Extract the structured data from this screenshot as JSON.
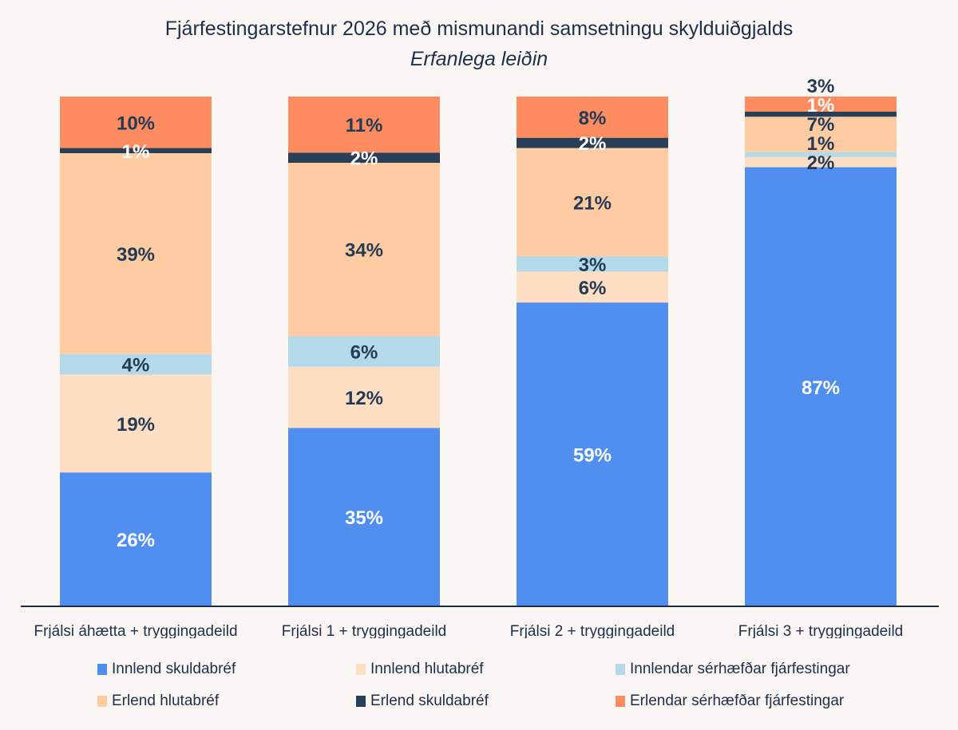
{
  "chart_data": {
    "type": "bar",
    "stacked": true,
    "title": "Fjárfestingarstefnur 2026 með mismunandi samsetningu skylduiðgjalds",
    "subtitle": "Erfanlega leiðin",
    "xlabel": "",
    "ylabel": "",
    "ylim": [
      0,
      100
    ],
    "grid": false,
    "legend_position": "bottom",
    "categories": [
      "Frjálsi áhætta + tryggingadeild",
      "Frjálsi 1 + tryggingadeild",
      "Frjálsi 2 + tryggingadeild",
      "Frjálsi 3 + tryggingadeild"
    ],
    "series": [
      {
        "name": "Innlend skuldabréf",
        "color": "#508ef0",
        "label_color": "#ffffff",
        "values": [
          26,
          35,
          59,
          87
        ],
        "labels": [
          "26%",
          "35%",
          "59%",
          "87%"
        ]
      },
      {
        "name": "Innlend hlutabréf",
        "color": "#ffdfc4",
        "label_color": "#243a55",
        "values": [
          19,
          12,
          6,
          2
        ],
        "labels": [
          "19%",
          "12%",
          "6%",
          "2%"
        ]
      },
      {
        "name": "Innlendar sérhæfðar fjárfestingar",
        "color": "#b4d9e8",
        "label_color": "#243a55",
        "values": [
          4,
          6,
          3,
          1
        ],
        "labels": [
          "4%",
          "6%",
          "3%",
          "1%"
        ]
      },
      {
        "name": "Erlend hlutabréf",
        "color": "#ffcba2",
        "label_color": "#243a55",
        "values": [
          39,
          34,
          21,
          7
        ],
        "labels": [
          "39%",
          "34%",
          "21%",
          "7%"
        ]
      },
      {
        "name": "Erlend skuldabréf",
        "color": "#293e57",
        "label_color": "#ffffff",
        "values": [
          1,
          2,
          2,
          1
        ],
        "labels": [
          "1%",
          "2%",
          "2%",
          "1%"
        ]
      },
      {
        "name": "Erlendar sérhæfðar fjárfestingar",
        "color": "#ff8c61",
        "label_color": "#243a55",
        "values": [
          10,
          11,
          8,
          3
        ],
        "labels": [
          "10%",
          "11%",
          "8%",
          "3%"
        ]
      }
    ]
  }
}
